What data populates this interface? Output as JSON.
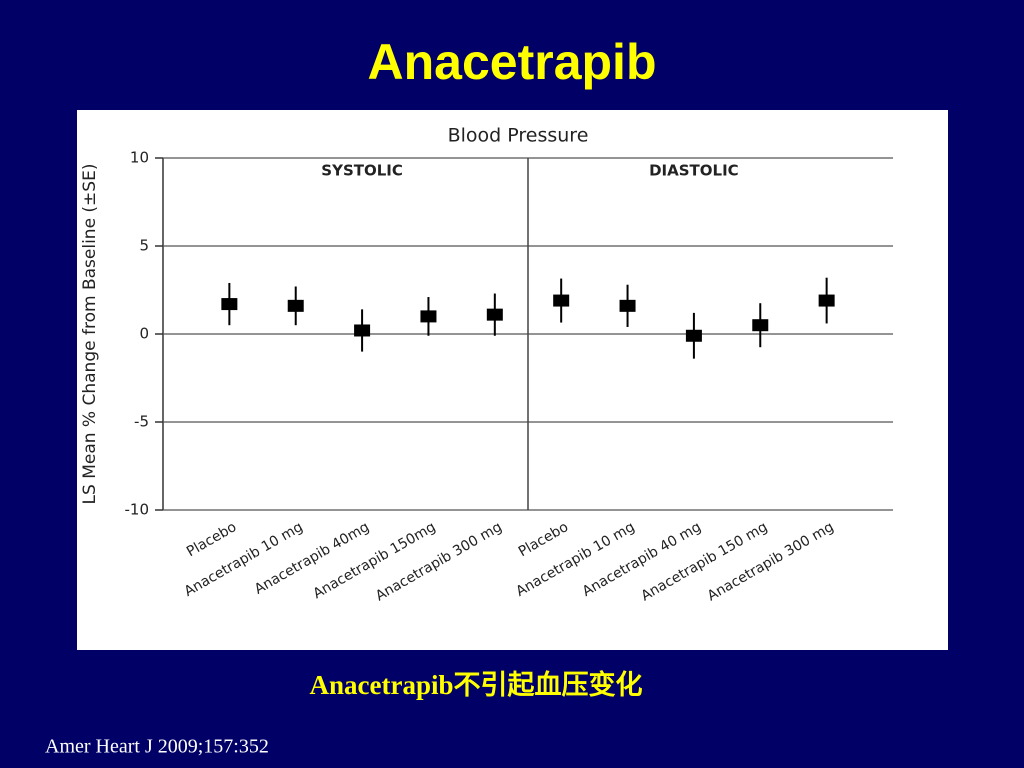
{
  "slide": {
    "title": "Anacetrapib",
    "caption": "Anacetrapib不引起血压变化",
    "citation": "Amer Heart J 2009;157:352"
  },
  "chart_data": {
    "type": "errorbar",
    "title": "Blood Pressure",
    "y_label": "LS Mean % Change from Baseline (±SE)",
    "panels": [
      "SYSTOLIC",
      "DIASTOLIC"
    ],
    "categories": [
      "Placebo",
      "Anacetrapib 10 mg",
      "Anacetrapib 40mg",
      "Anacetrapib 150mg",
      "Anacetrapib 300 mg",
      "Placebo",
      "Anacetrapib 10 mg",
      "Anacetrapib 40 mg",
      "Anacetrapib 150 mg",
      "Anacetrapib 300 mg"
    ],
    "series": [
      {
        "color": "#000000",
        "values": [
          1.7,
          1.6,
          0.2,
          1.0,
          1.1,
          1.9,
          1.6,
          -0.1,
          0.5,
          1.9
        ],
        "errors": [
          1.2,
          1.1,
          1.2,
          1.1,
          1.2,
          1.25,
          1.2,
          1.3,
          1.25,
          1.3
        ]
      }
    ],
    "ylim": [
      -10,
      10
    ],
    "yticks": [
      10,
      5,
      0,
      -5,
      -10
    ],
    "grid": true
  }
}
